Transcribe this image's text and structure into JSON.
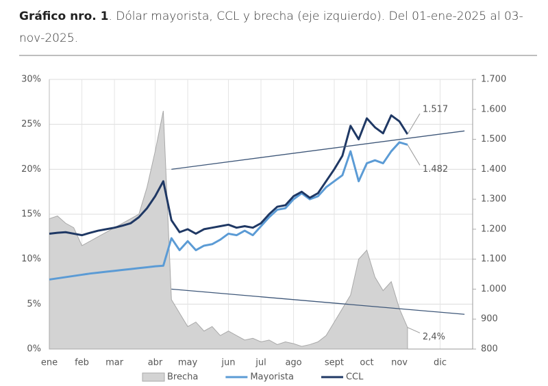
{
  "chart_data": {
    "type": "line",
    "title_bold": "Gráfico nro. 1",
    "title": ". Dólar mayorista, CCL y brecha (eje izquierdo). Del 01-ene-2025 al 03-nov-2025.",
    "categories": [
      "ene",
      null,
      null,
      null,
      "feb",
      null,
      null,
      null,
      "mar",
      null,
      null,
      null,
      null,
      "abr",
      null,
      null,
      null,
      "may",
      null,
      null,
      null,
      null,
      "jun",
      null,
      null,
      null,
      "jul",
      null,
      null,
      null,
      "ago",
      null,
      null,
      null,
      null,
      "sept",
      null,
      null,
      null,
      "oct",
      null,
      null,
      null,
      "nov",
      null,
      null,
      null,
      null,
      "dic",
      null,
      null,
      null
    ],
    "series": [
      {
        "name": "Brecha",
        "type": "area",
        "axis": "y",
        "color": "#d3d3d3",
        "values": [
          14.5,
          14.8,
          14.0,
          13.5,
          11.5,
          12.0,
          12.5,
          13.0,
          13.5,
          14.0,
          14.5,
          15.0,
          18.0,
          22.0,
          26.5,
          5.5,
          4.0,
          2.5,
          3.0,
          2.0,
          2.5,
          1.5,
          2.0,
          1.5,
          1.0,
          1.2,
          0.8,
          1.0,
          0.5,
          0.8,
          0.6,
          0.3,
          0.5,
          0.8,
          1.5,
          3.0,
          4.5,
          6.0,
          10.0,
          11.0,
          8.0,
          6.5,
          7.5,
          4.5,
          2.4,
          null,
          null,
          null,
          null,
          null,
          null,
          null
        ],
        "value_labels": [
          null,
          null,
          null,
          null,
          null,
          null,
          null,
          null,
          null,
          null,
          null,
          null,
          null,
          null,
          null,
          null,
          null,
          null,
          null,
          null,
          null,
          null,
          null,
          null,
          null,
          null,
          null,
          null,
          null,
          null,
          null,
          null,
          null,
          null,
          null,
          null,
          null,
          null,
          null,
          null,
          null,
          null,
          null,
          null,
          "2,4%",
          null,
          null,
          null,
          null,
          null,
          null,
          null
        ]
      },
      {
        "name": "Mayorista",
        "type": "line",
        "axis": "y2",
        "color": "#5b9bd5",
        "values": [
          1032,
          1036,
          1040,
          1044,
          1048,
          1052,
          1055,
          1058,
          1061,
          1064,
          1067,
          1070,
          1073,
          1076,
          1078,
          1170,
          1130,
          1160,
          1130,
          1145,
          1150,
          1165,
          1185,
          1180,
          1195,
          1180,
          1210,
          1240,
          1265,
          1270,
          1300,
          1320,
          1300,
          1310,
          1340,
          1360,
          1380,
          1460,
          1360,
          1420,
          1430,
          1420,
          1460,
          1490,
          1482,
          null,
          null,
          null,
          null,
          null,
          null,
          null
        ],
        "value_labels": [
          null,
          null,
          null,
          null,
          null,
          null,
          null,
          null,
          null,
          null,
          null,
          null,
          null,
          null,
          null,
          null,
          null,
          null,
          null,
          null,
          null,
          null,
          null,
          null,
          null,
          null,
          null,
          null,
          null,
          null,
          null,
          null,
          null,
          null,
          null,
          null,
          null,
          null,
          null,
          null,
          null,
          null,
          null,
          null,
          "1.482",
          null,
          null,
          null,
          null,
          null,
          null,
          null
        ]
      },
      {
        "name": "CCL",
        "type": "line",
        "axis": "y2",
        "color": "#1f3864",
        "values": [
          1185,
          1188,
          1190,
          1185,
          1180,
          1188,
          1195,
          1200,
          1205,
          1212,
          1220,
          1240,
          1270,
          1310,
          1360,
          1230,
          1190,
          1200,
          1185,
          1200,
          1205,
          1210,
          1215,
          1205,
          1210,
          1205,
          1220,
          1250,
          1275,
          1280,
          1310,
          1325,
          1305,
          1320,
          1360,
          1400,
          1445,
          1545,
          1500,
          1570,
          1540,
          1520,
          1580,
          1560,
          1517,
          null,
          null,
          null,
          null,
          null,
          null,
          null
        ],
        "value_labels": [
          null,
          null,
          null,
          null,
          null,
          null,
          null,
          null,
          null,
          null,
          null,
          null,
          null,
          null,
          null,
          null,
          null,
          null,
          null,
          null,
          null,
          null,
          null,
          null,
          null,
          null,
          null,
          null,
          null,
          null,
          null,
          null,
          null,
          null,
          null,
          null,
          null,
          null,
          null,
          null,
          null,
          null,
          null,
          null,
          "1.517",
          null,
          null,
          null,
          null,
          null,
          null,
          null
        ]
      }
    ],
    "bands": [
      {
        "x": [
          15,
          51
        ],
        "values": [
          1400,
          1528
        ],
        "color": "#3d5678"
      },
      {
        "x": [
          15,
          51
        ],
        "values": [
          1000,
          916
        ],
        "color": "#3d5678"
      }
    ],
    "ylim": [
      0,
      30
    ],
    "yticks": [
      {
        "value": 0,
        "label": "0%"
      },
      {
        "value": 5,
        "label": "5%"
      },
      {
        "value": 10,
        "label": "10%"
      },
      {
        "value": 15,
        "label": "15%"
      },
      {
        "value": 20,
        "label": "20%"
      },
      {
        "value": 25,
        "label": "25%"
      },
      {
        "value": 30,
        "label": "30%"
      }
    ],
    "y2lim": [
      800,
      1700
    ],
    "y2ticks": [
      800,
      900,
      {
        "value": 1000,
        "label": "1.000"
      },
      {
        "value": 1100,
        "label": "1.100"
      },
      {
        "value": 1200,
        "label": "1.200"
      },
      {
        "value": 1300,
        "label": "1.300"
      },
      {
        "value": 1400,
        "label": "1.400"
      },
      {
        "value": 1500,
        "label": "1.500"
      },
      {
        "value": 1600,
        "label": "1.600"
      },
      {
        "value": 1700,
        "label": "1.700"
      }
    ],
    "grid": true,
    "legend": "bottom"
  }
}
